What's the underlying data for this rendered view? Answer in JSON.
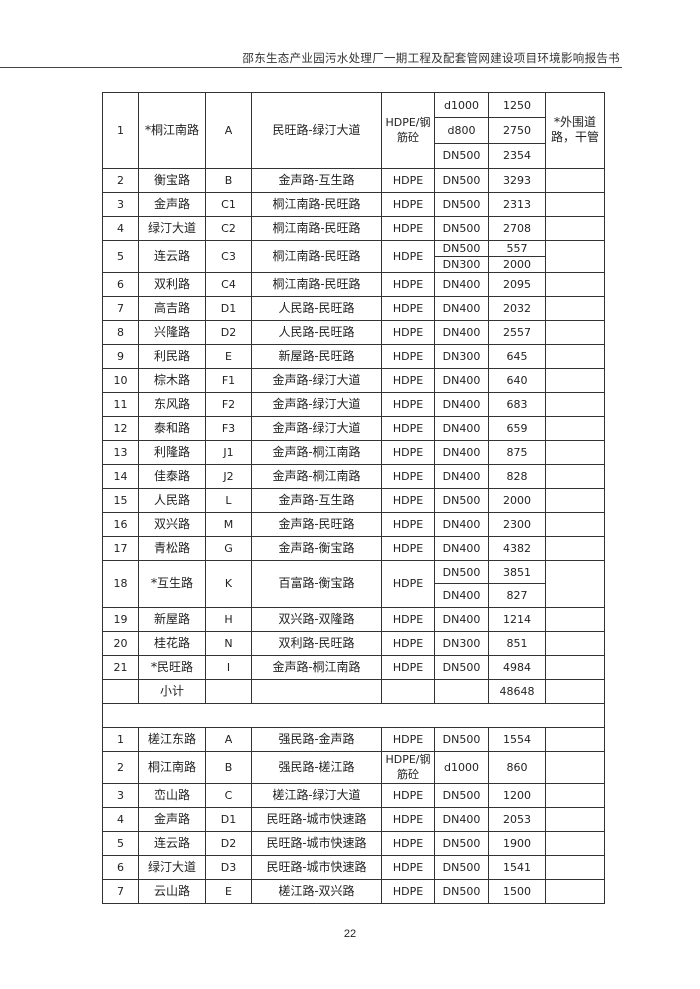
{
  "header": {
    "title": "邵东生态产业园污水处理厂一期工程及配套管网建设项目环境影响报告书"
  },
  "table": {
    "section1": [
      {
        "no": "1",
        "name": "*桐江南路",
        "code": "A",
        "route": "民旺路-绿汀大道",
        "material": "HDPE/钢筋砼",
        "segments": [
          {
            "dia": "d1000",
            "len": "1250"
          },
          {
            "dia": "d800",
            "len": "2750"
          },
          {
            "dia": "DN500",
            "len": "2354"
          }
        ],
        "note": "*外围道路，干管"
      },
      {
        "no": "2",
        "name": "衡宝路",
        "code": "B",
        "route": "金声路-互生路",
        "material": "HDPE",
        "segments": [
          {
            "dia": "DN500",
            "len": "3293"
          }
        ],
        "note": ""
      },
      {
        "no": "3",
        "name": "金声路",
        "code": "C1",
        "route": "桐江南路-民旺路",
        "material": "HDPE",
        "segments": [
          {
            "dia": "DN500",
            "len": "2313"
          }
        ],
        "note": ""
      },
      {
        "no": "4",
        "name": "绿汀大道",
        "code": "C2",
        "route": "桐江南路-民旺路",
        "material": "HDPE",
        "segments": [
          {
            "dia": "DN500",
            "len": "2708"
          }
        ],
        "note": ""
      },
      {
        "no": "5",
        "name": "连云路",
        "code": "C3",
        "route": "桐江南路-民旺路",
        "material": "HDPE",
        "segments": [
          {
            "dia": "DN500",
            "len": "557"
          },
          {
            "dia": "DN300",
            "len": "2000"
          }
        ],
        "note": ""
      },
      {
        "no": "6",
        "name": "双利路",
        "code": "C4",
        "route": "桐江南路-民旺路",
        "material": "HDPE",
        "segments": [
          {
            "dia": "DN400",
            "len": "2095"
          }
        ],
        "note": ""
      },
      {
        "no": "7",
        "name": "高吉路",
        "code": "D1",
        "route": "人民路-民旺路",
        "material": "HDPE",
        "segments": [
          {
            "dia": "DN400",
            "len": "2032"
          }
        ],
        "note": ""
      },
      {
        "no": "8",
        "name": "兴隆路",
        "code": "D2",
        "route": "人民路-民旺路",
        "material": "HDPE",
        "segments": [
          {
            "dia": "DN400",
            "len": "2557"
          }
        ],
        "note": ""
      },
      {
        "no": "9",
        "name": "利民路",
        "code": "E",
        "route": "新屋路-民旺路",
        "material": "HDPE",
        "segments": [
          {
            "dia": "DN300",
            "len": "645"
          }
        ],
        "note": ""
      },
      {
        "no": "10",
        "name": "棕木路",
        "code": "F1",
        "route": "金声路-绿汀大道",
        "material": "HDPE",
        "segments": [
          {
            "dia": "DN400",
            "len": "640"
          }
        ],
        "note": ""
      },
      {
        "no": "11",
        "name": "东风路",
        "code": "F2",
        "route": "金声路-绿汀大道",
        "material": "HDPE",
        "segments": [
          {
            "dia": "DN400",
            "len": "683"
          }
        ],
        "note": ""
      },
      {
        "no": "12",
        "name": "泰和路",
        "code": "F3",
        "route": "金声路-绿汀大道",
        "material": "HDPE",
        "segments": [
          {
            "dia": "DN400",
            "len": "659"
          }
        ],
        "note": ""
      },
      {
        "no": "13",
        "name": "利隆路",
        "code": "J1",
        "route": "金声路-桐江南路",
        "material": "HDPE",
        "segments": [
          {
            "dia": "DN400",
            "len": "875"
          }
        ],
        "note": ""
      },
      {
        "no": "14",
        "name": "佳泰路",
        "code": "J2",
        "route": "金声路-桐江南路",
        "material": "HDPE",
        "segments": [
          {
            "dia": "DN400",
            "len": "828"
          }
        ],
        "note": ""
      },
      {
        "no": "15",
        "name": "人民路",
        "code": "L",
        "route": "金声路-互生路",
        "material": "HDPE",
        "segments": [
          {
            "dia": "DN500",
            "len": "2000"
          }
        ],
        "note": ""
      },
      {
        "no": "16",
        "name": "双兴路",
        "code": "M",
        "route": "金声路-民旺路",
        "material": "HDPE",
        "segments": [
          {
            "dia": "DN400",
            "len": "2300"
          }
        ],
        "note": ""
      },
      {
        "no": "17",
        "name": "青松路",
        "code": "G",
        "route": "金声路-衡宝路",
        "material": "HDPE",
        "segments": [
          {
            "dia": "DN400",
            "len": "4382"
          }
        ],
        "note": ""
      },
      {
        "no": "18",
        "name": "*互生路",
        "code": "K",
        "route": "百富路-衡宝路",
        "material": "HDPE",
        "segments": [
          {
            "dia": "DN500",
            "len": "3851"
          },
          {
            "dia": "DN400",
            "len": "827"
          }
        ],
        "note": ""
      },
      {
        "no": "19",
        "name": "新屋路",
        "code": "H",
        "route": "双兴路-双隆路",
        "material": "HDPE",
        "segments": [
          {
            "dia": "DN400",
            "len": "1214"
          }
        ],
        "note": ""
      },
      {
        "no": "20",
        "name": "桂花路",
        "code": "N",
        "route": "双利路-民旺路",
        "material": "HDPE",
        "segments": [
          {
            "dia": "DN300",
            "len": "851"
          }
        ],
        "note": ""
      },
      {
        "no": "21",
        "name": "*民旺路",
        "code": "I",
        "route": "金声路-桐江南路",
        "material": "HDPE",
        "segments": [
          {
            "dia": "DN500",
            "len": "4984"
          }
        ],
        "note": ""
      }
    ],
    "subtotal": {
      "label": "小计",
      "value": "48648"
    },
    "section2": [
      {
        "no": "1",
        "name": "槎江东路",
        "code": "A",
        "route": "强民路-金声路",
        "material": "HDPE",
        "segments": [
          {
            "dia": "DN500",
            "len": "1554"
          }
        ],
        "note": ""
      },
      {
        "no": "2",
        "name": "桐江南路",
        "code": "B",
        "route": "强民路-槎江路",
        "material": "HDPE/钢筋砼",
        "segments": [
          {
            "dia": "d1000",
            "len": "860"
          }
        ],
        "note": ""
      },
      {
        "no": "3",
        "name": "峦山路",
        "code": "C",
        "route": "槎江路-绿汀大道",
        "material": "HDPE",
        "segments": [
          {
            "dia": "DN500",
            "len": "1200"
          }
        ],
        "note": ""
      },
      {
        "no": "4",
        "name": "金声路",
        "code": "D1",
        "route": "民旺路-城市快速路",
        "material": "HDPE",
        "segments": [
          {
            "dia": "DN400",
            "len": "2053"
          }
        ],
        "note": ""
      },
      {
        "no": "5",
        "name": "连云路",
        "code": "D2",
        "route": "民旺路-城市快速路",
        "material": "HDPE",
        "segments": [
          {
            "dia": "DN500",
            "len": "1900"
          }
        ],
        "note": ""
      },
      {
        "no": "6",
        "name": "绿汀大道",
        "code": "D3",
        "route": "民旺路-城市快速路",
        "material": "HDPE",
        "segments": [
          {
            "dia": "DN500",
            "len": "1541"
          }
        ],
        "note": ""
      },
      {
        "no": "7",
        "name": "云山路",
        "code": "E",
        "route": "槎江路-双兴路",
        "material": "HDPE",
        "segments": [
          {
            "dia": "DN500",
            "len": "1500"
          }
        ],
        "note": ""
      }
    ]
  },
  "footer": {
    "page_number": "22"
  }
}
